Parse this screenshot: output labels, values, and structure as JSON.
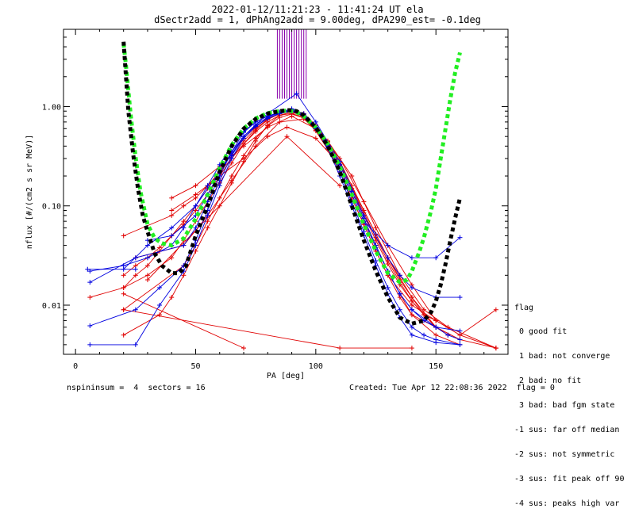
{
  "title": "2022-01-12/11:21:23 - 11:41:24 UT ela",
  "subtitle": "dSectr2add = 1, dPhAng2add = 9.00deg, dPA290_est=  -0.1deg",
  "footer_left": "nspininsum =  4  sectors = 16",
  "footer_right": "Created: Tue Apr 12 22:08:36 2022  flag = 0",
  "legend": {
    "title": "flag",
    "items": [
      " 0 good fit",
      " 1 bad: not converge",
      " 2 bad: no fit",
      " 3 bad: bad fgm state",
      "-1 sus: far off median",
      "-2 sus: not symmetric",
      "-3 sus: fit peak off 90",
      "-4 sus: peaks high var"
    ]
  },
  "colors": {
    "red": "#e00000",
    "blue": "#0000e0",
    "green": "#22ee22",
    "black": "#000000",
    "purple": "#8800aa"
  },
  "chart_data": {
    "type": "line",
    "xlabel": "PA [deg]",
    "ylabel": "nflux [#/(cm2 s sr MeV)]",
    "xlim": [
      -5,
      180
    ],
    "ylim": [
      0.0032,
      6.0
    ],
    "yscale": "log",
    "xticks": [
      0,
      50,
      100,
      150
    ],
    "yticks": [
      0.01,
      0.1,
      1.0
    ],
    "ytick_labels": [
      "0.01",
      "0.10",
      "1.00"
    ],
    "fit_curves": [
      {
        "color": "green",
        "x": [
          20,
          21,
          22,
          23,
          25,
          27,
          30,
          33,
          36,
          40,
          45,
          50,
          55,
          60,
          65,
          70,
          75,
          80,
          85,
          88,
          90,
          92,
          95,
          100,
          105,
          110,
          115,
          120,
          125,
          130,
          135,
          138,
          140,
          143,
          145,
          148,
          150,
          152,
          154,
          156,
          158,
          160
        ],
        "y": [
          4.3,
          2.6,
          1.45,
          0.8,
          0.31,
          0.14,
          0.065,
          0.047,
          0.042,
          0.04,
          0.047,
          0.074,
          0.13,
          0.24,
          0.41,
          0.6,
          0.76,
          0.86,
          0.9,
          0.91,
          0.9,
          0.88,
          0.8,
          0.62,
          0.42,
          0.25,
          0.13,
          0.065,
          0.035,
          0.021,
          0.017,
          0.018,
          0.022,
          0.034,
          0.048,
          0.09,
          0.15,
          0.3,
          0.6,
          1.2,
          2.2,
          3.5
        ]
      },
      {
        "color": "black",
        "x": [
          20,
          22,
          24,
          26,
          28,
          30,
          33,
          36,
          40,
          43,
          46,
          50,
          55,
          60,
          65,
          70,
          75,
          80,
          85,
          88,
          90,
          92,
          95,
          100,
          105,
          110,
          115,
          120,
          125,
          130,
          135,
          140,
          145,
          148,
          150,
          152,
          154,
          156,
          158,
          160
        ],
        "y": [
          4.5,
          0.9,
          0.33,
          0.15,
          0.08,
          0.055,
          0.033,
          0.025,
          0.021,
          0.021,
          0.025,
          0.05,
          0.1,
          0.22,
          0.4,
          0.6,
          0.75,
          0.85,
          0.9,
          0.92,
          0.92,
          0.9,
          0.82,
          0.62,
          0.4,
          0.22,
          0.1,
          0.045,
          0.022,
          0.012,
          0.0075,
          0.0065,
          0.007,
          0.0085,
          0.011,
          0.016,
          0.026,
          0.045,
          0.075,
          0.12
        ]
      }
    ],
    "series": [
      {
        "color": "red",
        "x": [
          6,
          20,
          25,
          30,
          35,
          40,
          45,
          50,
          55,
          60,
          65,
          70,
          75,
          80,
          85,
          90,
          95,
          100,
          105,
          110,
          115,
          120,
          125,
          130,
          135,
          140,
          145,
          150
        ],
        "y": [
          0.012,
          0.015,
          0.02,
          0.025,
          0.035,
          0.05,
          0.07,
          0.1,
          0.15,
          0.23,
          0.33,
          0.48,
          0.62,
          0.78,
          0.88,
          0.92,
          0.85,
          0.65,
          0.45,
          0.28,
          0.16,
          0.09,
          0.052,
          0.03,
          0.018,
          0.012,
          0.008,
          0.006
        ]
      },
      {
        "color": "red",
        "x": [
          20,
          25,
          30,
          35,
          40,
          45,
          50,
          55,
          60,
          65,
          70,
          75,
          80,
          85,
          90,
          95,
          100,
          105,
          110,
          115,
          120,
          125,
          130,
          135,
          140,
          145,
          150,
          155
        ],
        "y": [
          0.02,
          0.025,
          0.03,
          0.038,
          0.05,
          0.065,
          0.09,
          0.13,
          0.2,
          0.3,
          0.45,
          0.6,
          0.75,
          0.86,
          0.9,
          0.84,
          0.64,
          0.44,
          0.27,
          0.15,
          0.085,
          0.048,
          0.028,
          0.017,
          0.011,
          0.008,
          0.006,
          0.005
        ]
      },
      {
        "color": "red",
        "x": [
          20,
          30,
          40,
          45,
          50,
          55,
          60,
          65,
          70,
          75,
          80,
          85,
          90,
          95,
          100,
          105,
          110,
          115,
          120,
          125,
          130,
          135,
          140,
          145,
          150
        ],
        "y": [
          0.015,
          0.02,
          0.03,
          0.045,
          0.07,
          0.11,
          0.17,
          0.27,
          0.42,
          0.58,
          0.74,
          0.85,
          0.9,
          0.82,
          0.62,
          0.42,
          0.26,
          0.14,
          0.08,
          0.045,
          0.026,
          0.016,
          0.011,
          0.008,
          0.007
        ]
      },
      {
        "color": "red",
        "x": [
          20,
          35,
          40,
          45,
          50,
          55,
          60,
          65,
          70,
          75,
          80,
          85,
          90,
          95,
          100,
          105,
          110,
          115,
          120,
          125,
          130,
          135,
          140,
          150,
          160
        ],
        "y": [
          0.005,
          0.008,
          0.012,
          0.02,
          0.035,
          0.06,
          0.1,
          0.17,
          0.28,
          0.45,
          0.65,
          0.82,
          0.88,
          0.8,
          0.6,
          0.4,
          0.24,
          0.13,
          0.07,
          0.04,
          0.022,
          0.013,
          0.008,
          0.005,
          0.004
        ]
      },
      {
        "color": "red",
        "x": [
          20,
          40,
          45,
          50,
          55,
          60,
          65,
          70,
          75,
          80,
          85,
          90,
          95,
          100,
          105,
          110,
          115,
          120,
          125,
          130,
          140,
          150,
          160,
          175
        ],
        "y": [
          0.05,
          0.08,
          0.1,
          0.12,
          0.16,
          0.22,
          0.3,
          0.42,
          0.56,
          0.7,
          0.82,
          0.85,
          0.78,
          0.58,
          0.38,
          0.22,
          0.12,
          0.065,
          0.035,
          0.02,
          0.01,
          0.007,
          0.005,
          0.0037
        ]
      },
      {
        "color": "red",
        "x": [
          20,
          45,
          50,
          55,
          60,
          65,
          70,
          75,
          80,
          85,
          90,
          95,
          100,
          105,
          110,
          115,
          120,
          125,
          130,
          135,
          140,
          150,
          160,
          175
        ],
        "y": [
          0.009,
          0.025,
          0.04,
          0.07,
          0.12,
          0.2,
          0.32,
          0.48,
          0.64,
          0.78,
          0.84,
          0.77,
          0.57,
          0.37,
          0.22,
          0.12,
          0.065,
          0.035,
          0.02,
          0.012,
          0.008,
          0.006,
          0.0045,
          0.0037
        ]
      },
      {
        "color": "red",
        "x": [
          20,
          70
        ],
        "y": [
          0.013,
          0.0037
        ]
      },
      {
        "color": "red",
        "x": [
          30,
          88,
          110
        ],
        "y": [
          0.018,
          0.5,
          0.16
        ]
      },
      {
        "color": "red",
        "x": [
          20,
          110,
          140
        ],
        "y": [
          0.009,
          0.0037,
          0.0037
        ]
      },
      {
        "color": "red",
        "x": [
          40,
          50,
          60,
          70,
          80,
          90,
          100,
          110,
          120,
          130,
          140,
          150,
          160,
          175
        ],
        "y": [
          0.12,
          0.16,
          0.25,
          0.4,
          0.62,
          0.8,
          0.6,
          0.3,
          0.11,
          0.04,
          0.016,
          0.007,
          0.005,
          0.009
        ]
      },
      {
        "color": "red",
        "x": [
          40,
          50,
          60,
          70,
          80,
          88,
          100,
          110,
          120,
          130,
          140,
          150,
          160
        ],
        "y": [
          0.09,
          0.13,
          0.2,
          0.3,
          0.5,
          0.62,
          0.48,
          0.26,
          0.09,
          0.03,
          0.012,
          0.006,
          0.0045
        ]
      },
      {
        "color": "red",
        "x": [
          25,
          45,
          55,
          65,
          75,
          85,
          95,
          105,
          115,
          125,
          135,
          145,
          155,
          175
        ],
        "y": [
          0.03,
          0.04,
          0.08,
          0.18,
          0.4,
          0.7,
          0.75,
          0.45,
          0.2,
          0.06,
          0.02,
          0.009,
          0.006,
          0.0037
        ]
      },
      {
        "color": "blue",
        "x": [
          6,
          25,
          45,
          50,
          55,
          60,
          65,
          70,
          75,
          80,
          85,
          90,
          95,
          100,
          105,
          110,
          115,
          120,
          125,
          130,
          135,
          140,
          145,
          150,
          155,
          160
        ],
        "y": [
          0.017,
          0.03,
          0.04,
          0.06,
          0.11,
          0.2,
          0.35,
          0.55,
          0.7,
          0.8,
          0.88,
          0.92,
          0.82,
          0.6,
          0.4,
          0.24,
          0.13,
          0.07,
          0.038,
          0.022,
          0.013,
          0.009,
          0.007,
          0.006,
          0.005,
          0.0045
        ]
      },
      {
        "color": "blue",
        "x": [
          6,
          25,
          35,
          45,
          50,
          55,
          60,
          65,
          70,
          75,
          80,
          85,
          90,
          95,
          100,
          105,
          110,
          115,
          120,
          125,
          130,
          135,
          140,
          145,
          150,
          160
        ],
        "y": [
          0.0062,
          0.009,
          0.015,
          0.025,
          0.045,
          0.09,
          0.18,
          0.32,
          0.5,
          0.66,
          0.78,
          0.88,
          0.95,
          0.85,
          0.62,
          0.4,
          0.22,
          0.11,
          0.055,
          0.028,
          0.015,
          0.009,
          0.006,
          0.005,
          0.0045,
          0.004
        ]
      },
      {
        "color": "blue",
        "x": [
          6,
          25,
          35,
          45,
          50,
          55,
          60,
          65,
          70,
          75,
          80,
          85,
          90,
          95,
          100,
          105,
          110,
          115,
          120,
          125,
          130,
          135,
          140,
          150,
          160
        ],
        "y": [
          0.004,
          0.004,
          0.01,
          0.022,
          0.04,
          0.08,
          0.16,
          0.3,
          0.48,
          0.63,
          0.76,
          0.86,
          0.92,
          0.82,
          0.6,
          0.38,
          0.2,
          0.1,
          0.05,
          0.025,
          0.013,
          0.0075,
          0.005,
          0.0042,
          0.004
        ]
      },
      {
        "color": "blue",
        "x": [
          6,
          20,
          30,
          40,
          45,
          50,
          55,
          60,
          65,
          70,
          75,
          80,
          85,
          90,
          95,
          100,
          105,
          110,
          115,
          120,
          125,
          130,
          135,
          140,
          150,
          160
        ],
        "y": [
          0.022,
          0.025,
          0.03,
          0.04,
          0.06,
          0.1,
          0.16,
          0.26,
          0.4,
          0.56,
          0.7,
          0.8,
          0.86,
          0.9,
          0.82,
          0.62,
          0.42,
          0.26,
          0.14,
          0.075,
          0.04,
          0.022,
          0.013,
          0.009,
          0.006,
          0.0055
        ]
      },
      {
        "color": "blue",
        "x": [
          20,
          30,
          40,
          50,
          60,
          70,
          80,
          92,
          100,
          110,
          120,
          130,
          135,
          140,
          150,
          160
        ],
        "y": [
          0.023,
          0.04,
          0.06,
          0.1,
          0.22,
          0.5,
          0.85,
          1.35,
          0.7,
          0.28,
          0.08,
          0.03,
          0.02,
          0.015,
          0.012,
          0.012
        ]
      },
      {
        "color": "blue",
        "x": [
          30,
          40,
          50,
          55,
          60,
          65,
          70,
          75,
          80,
          85,
          90,
          95,
          100,
          105,
          110,
          115,
          120,
          130,
          140,
          150,
          160
        ],
        "y": [
          0.045,
          0.05,
          0.08,
          0.13,
          0.22,
          0.35,
          0.5,
          0.64,
          0.76,
          0.85,
          0.9,
          0.8,
          0.6,
          0.4,
          0.24,
          0.13,
          0.07,
          0.04,
          0.03,
          0.03,
          0.048
        ]
      },
      {
        "color": "blue",
        "x": [
          5,
          25
        ],
        "y": [
          0.023,
          0.023
        ]
      }
    ],
    "spikes": {
      "color": "purple",
      "x": [
        84,
        85,
        86,
        87,
        88,
        89,
        90,
        91,
        92,
        93,
        94,
        95,
        96
      ],
      "y_from": 1.2
    }
  }
}
